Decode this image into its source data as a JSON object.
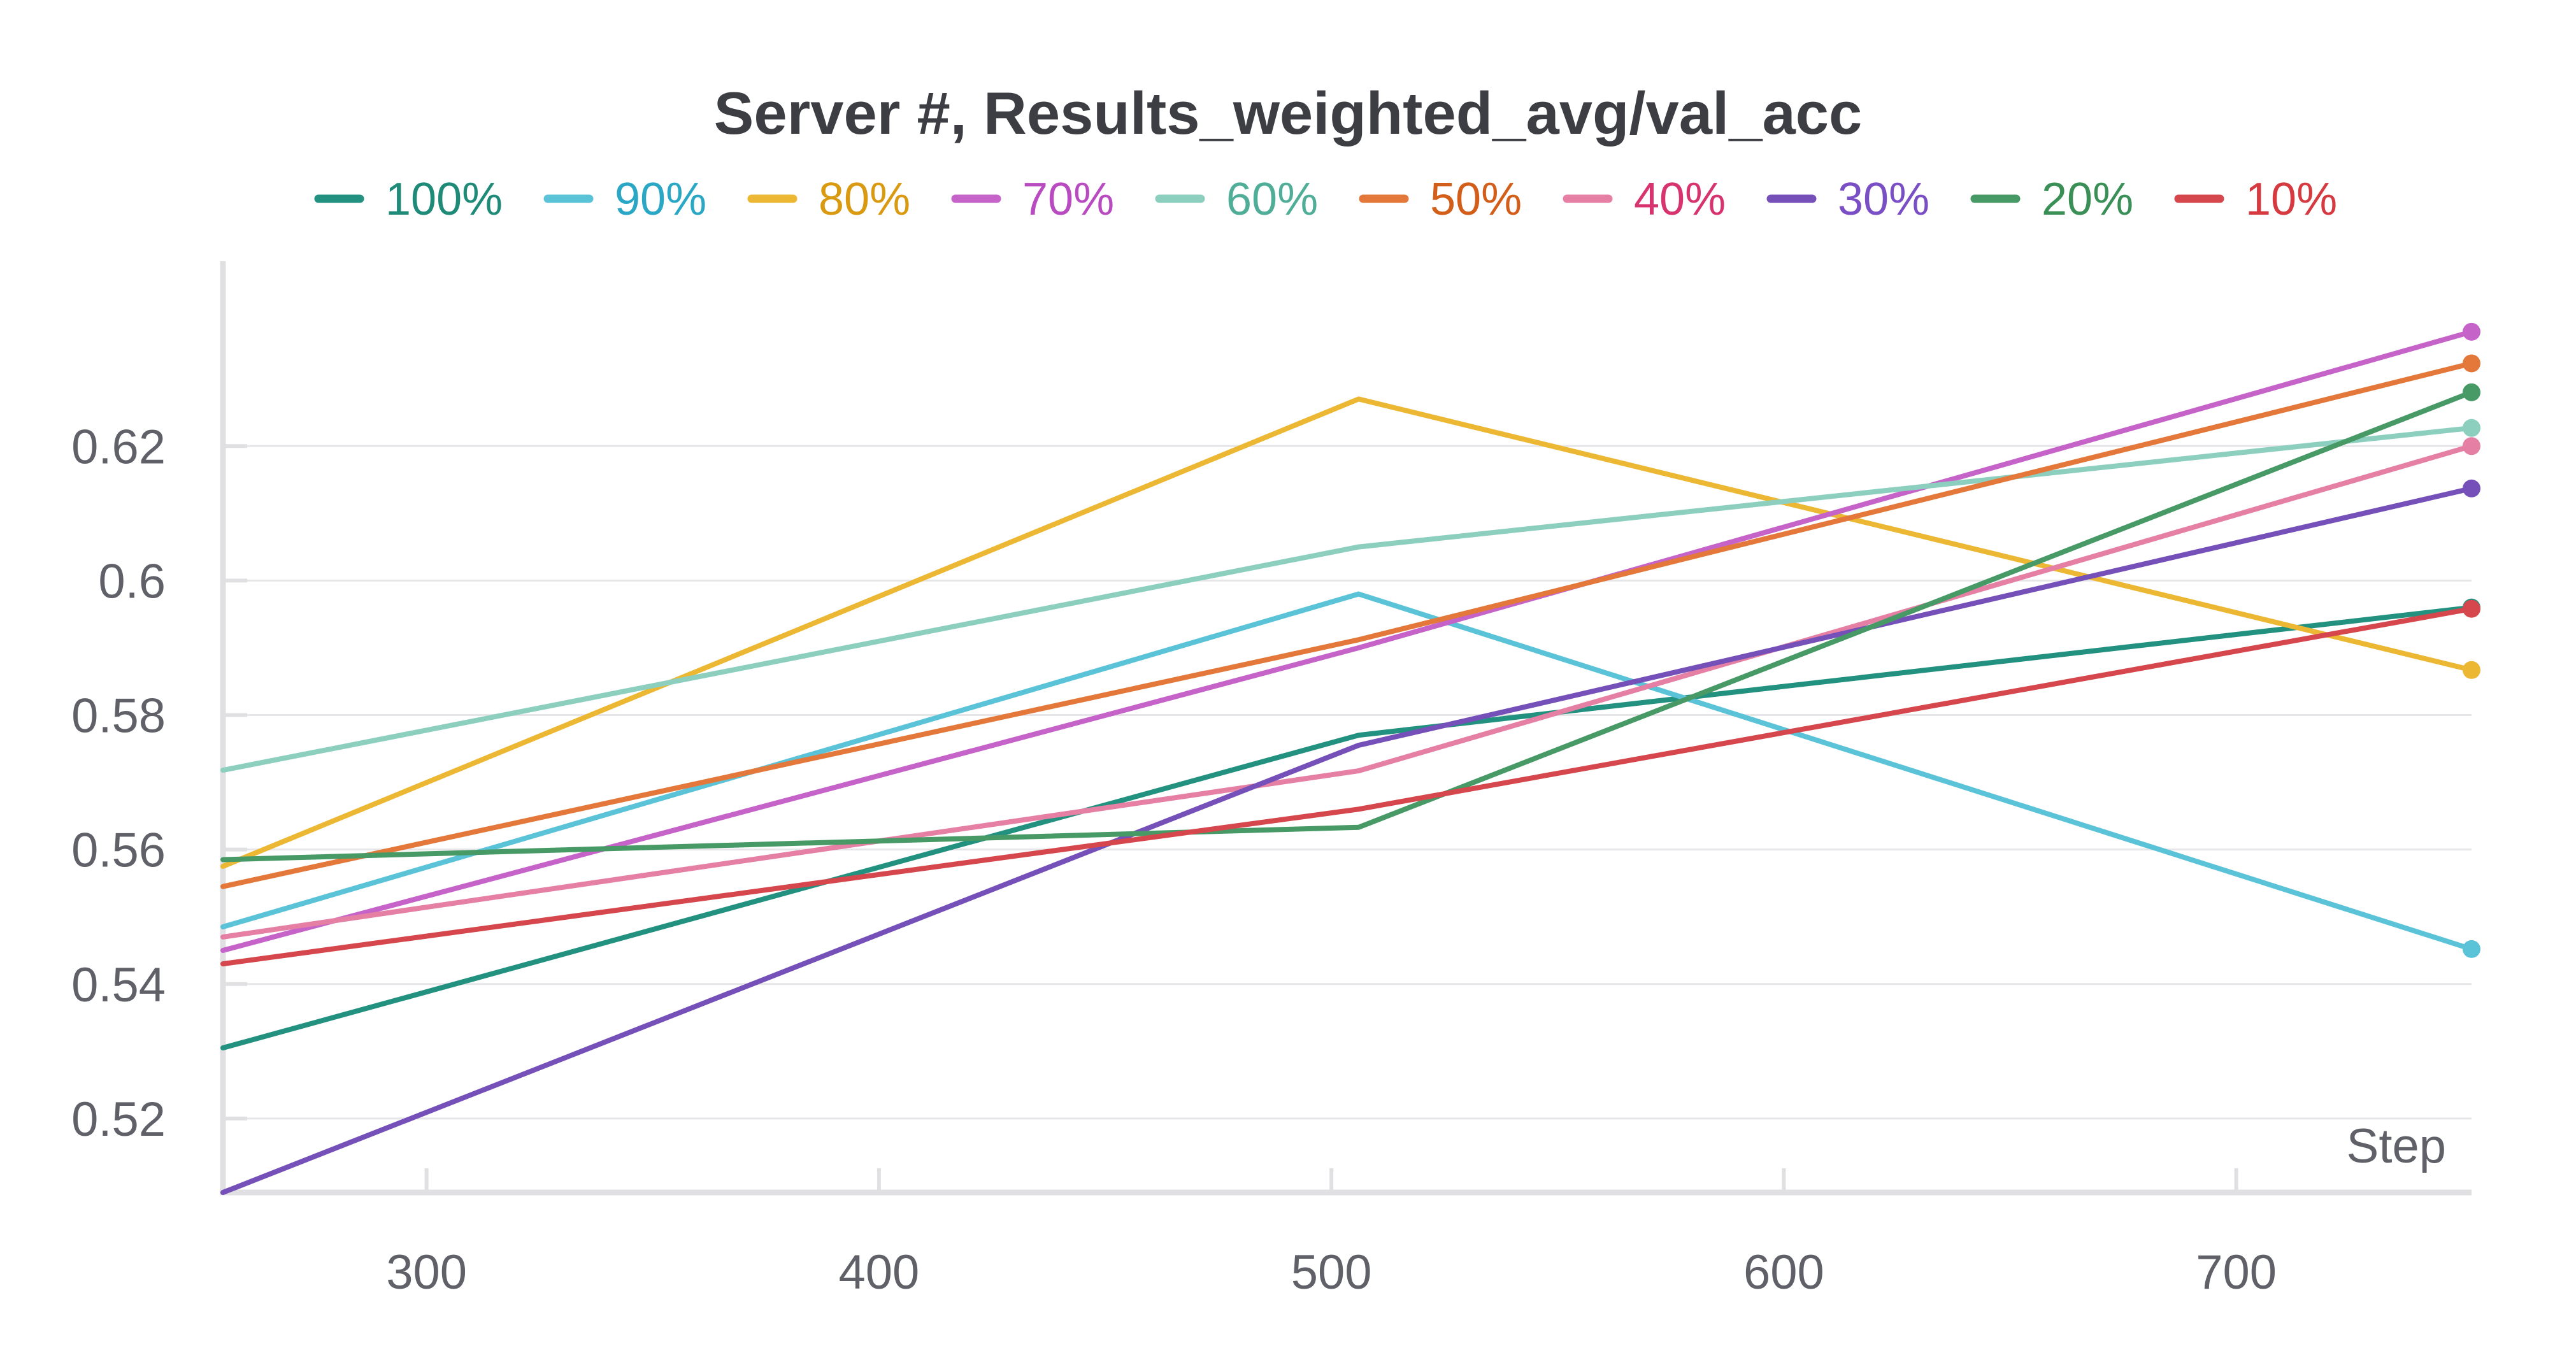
{
  "chart_data": {
    "type": "line",
    "title": "Server #, Results_weighted_avg/val_acc",
    "xlabel": "Step",
    "ylabel": "",
    "xlim": [
      255,
      752
    ],
    "ylim": [
      0.509,
      0.6475
    ],
    "xticks": [
      300,
      400,
      500,
      600,
      700
    ],
    "yticks": [
      0.52,
      0.54,
      0.56,
      0.58,
      0.6,
      0.62
    ],
    "ytick_labels": [
      "0.52",
      "0.54",
      "0.56",
      "0.58",
      "0.6",
      "0.62"
    ],
    "grid": "horizontal",
    "legend_position": "top",
    "end_markers": true,
    "series": [
      {
        "name": "100%",
        "color": "#23917f",
        "label_color": "#1f8a78",
        "points": [
          [
            255,
            0.5305
          ],
          [
            506,
            0.577
          ],
          [
            752,
            0.596
          ]
        ]
      },
      {
        "name": "90%",
        "color": "#5bc3d8",
        "label_color": "#2aa7c4",
        "points": [
          [
            255,
            0.5485
          ],
          [
            506,
            0.598
          ],
          [
            752,
            0.5452
          ]
        ]
      },
      {
        "name": "80%",
        "color": "#ecb833",
        "label_color": "#d99a12",
        "points": [
          [
            255,
            0.5575
          ],
          [
            506,
            0.627
          ],
          [
            752,
            0.5867
          ]
        ]
      },
      {
        "name": "70%",
        "color": "#c563c9",
        "label_color": "#b94bc1",
        "points": [
          [
            255,
            0.545
          ],
          [
            506,
            0.59
          ],
          [
            752,
            0.637
          ]
        ]
      },
      {
        "name": "60%",
        "color": "#8dcfbf",
        "label_color": "#4fad98",
        "points": [
          [
            255,
            0.5718
          ],
          [
            506,
            0.605
          ],
          [
            752,
            0.6227
          ]
        ]
      },
      {
        "name": "50%",
        "color": "#e3783a",
        "label_color": "#d35e1a",
        "points": [
          [
            255,
            0.5545
          ],
          [
            506,
            0.5912
          ],
          [
            752,
            0.6323
          ]
        ]
      },
      {
        "name": "40%",
        "color": "#e57fa3",
        "label_color": "#d6336f",
        "points": [
          [
            255,
            0.547
          ],
          [
            506,
            0.5717
          ],
          [
            752,
            0.62
          ]
        ]
      },
      {
        "name": "30%",
        "color": "#7450b8",
        "label_color": "#7a4ec4",
        "points": [
          [
            255,
            0.509
          ],
          [
            506,
            0.5755
          ],
          [
            752,
            0.6137
          ]
        ]
      },
      {
        "name": "20%",
        "color": "#479966",
        "label_color": "#3a8f56",
        "points": [
          [
            255,
            0.5585
          ],
          [
            506,
            0.5633
          ],
          [
            752,
            0.628
          ]
        ]
      },
      {
        "name": "10%",
        "color": "#d5474c",
        "label_color": "#d43a40",
        "points": [
          [
            255,
            0.543
          ],
          [
            506,
            0.566
          ],
          [
            752,
            0.5958
          ]
        ]
      }
    ]
  }
}
